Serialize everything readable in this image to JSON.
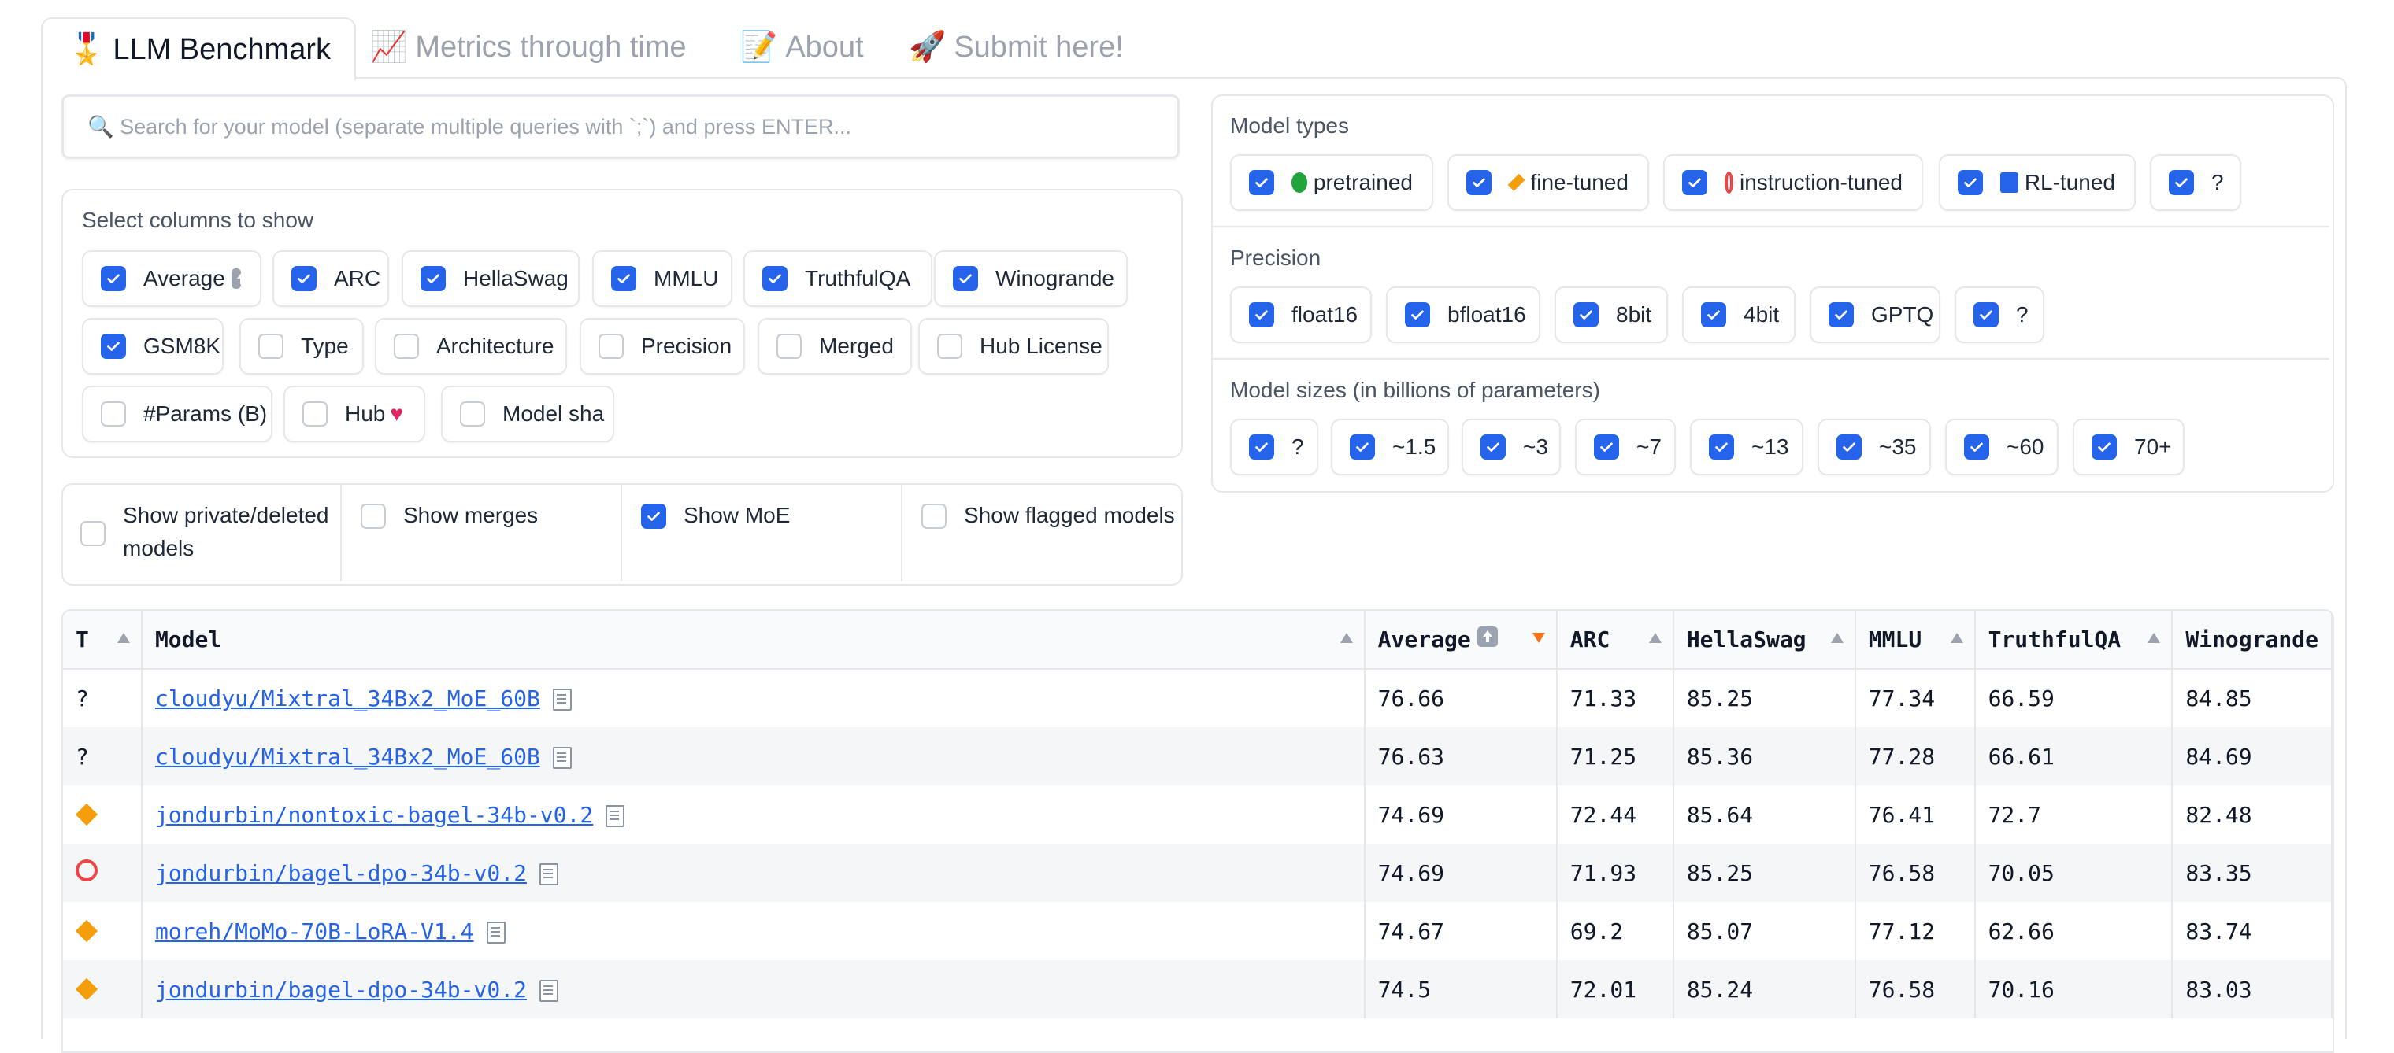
{
  "tabs": [
    {
      "icon": "🎖️",
      "label": "LLM Benchmark",
      "active": true
    },
    {
      "icon": "📈",
      "label": "Metrics through time"
    },
    {
      "icon": "📝",
      "label": "About"
    },
    {
      "icon": "🚀",
      "label": "Submit here!"
    }
  ],
  "search": {
    "placeholder": "🔍 Search for your model (separate multiple queries with `;`) and press ENTER..."
  },
  "columns": {
    "title": "Select columns to show",
    "items": [
      {
        "label": "Average",
        "checked": true
      },
      {
        "label": "ARC",
        "checked": true
      },
      {
        "label": "HellaSwag",
        "checked": true
      },
      {
        "label": "MMLU",
        "checked": true
      },
      {
        "label": "TruthfulQA",
        "checked": true
      },
      {
        "label": "Winogrande",
        "checked": true
      },
      {
        "label": "GSM8K",
        "checked": true
      },
      {
        "label": "Type",
        "checked": false
      },
      {
        "label": "Architecture",
        "checked": false
      },
      {
        "label": "Precision",
        "checked": false
      },
      {
        "label": "Merged",
        "checked": false
      },
      {
        "label": "Hub License",
        "checked": false
      },
      {
        "label": "#Params (B)",
        "checked": false
      },
      {
        "label": "Hub",
        "checked": false
      },
      {
        "label": "Model sha",
        "checked": false
      }
    ]
  },
  "options": [
    {
      "label": "Show private/deleted models",
      "line1": "Show private/deleted",
      "line2": "models",
      "checked": false
    },
    {
      "label": "Show merges",
      "checked": false
    },
    {
      "label": "Show MoE",
      "checked": true
    },
    {
      "label": "Show flagged models",
      "checked": false
    }
  ],
  "model_types": {
    "title": "Model types",
    "items": [
      {
        "icon": "green-circle",
        "label": "pretrained",
        "checked": true
      },
      {
        "icon": "orange-diamond",
        "label": "fine-tuned",
        "checked": true
      },
      {
        "icon": "red-ring",
        "label": "instruction-tuned",
        "checked": true
      },
      {
        "icon": "blue-square",
        "label": "RL-tuned",
        "checked": true
      },
      {
        "icon": "",
        "label": "?",
        "checked": true
      }
    ]
  },
  "precision": {
    "title": "Precision",
    "items": [
      {
        "label": "float16",
        "checked": true
      },
      {
        "label": "bfloat16",
        "checked": true
      },
      {
        "label": "8bit",
        "checked": true
      },
      {
        "label": "4bit",
        "checked": true
      },
      {
        "label": "GPTQ",
        "checked": true
      },
      {
        "label": "?",
        "checked": true
      }
    ]
  },
  "model_sizes": {
    "title": "Model sizes (in billions of parameters)",
    "items": [
      {
        "label": "?",
        "checked": true
      },
      {
        "label": "~1.5",
        "checked": true
      },
      {
        "label": "~3",
        "checked": true
      },
      {
        "label": "~7",
        "checked": true
      },
      {
        "label": "~13",
        "checked": true
      },
      {
        "label": "~35",
        "checked": true
      },
      {
        "label": "~60",
        "checked": true
      },
      {
        "label": "70+",
        "checked": true
      }
    ]
  },
  "table": {
    "headers": [
      "T",
      "Model",
      "Average",
      "ARC",
      "HellaSwag",
      "MMLU",
      "TruthfulQA",
      "Winogrande"
    ],
    "rows": [
      {
        "type": "?",
        "model": "cloudyu/Mixtral_34Bx2_MoE_60B",
        "average": "76.66",
        "arc": "71.33",
        "hellaswag": "85.25",
        "mmlu": "77.34",
        "truthfulqa": "66.59",
        "winogrande": "84.85"
      },
      {
        "type": "?",
        "model": "cloudyu/Mixtral_34Bx2_MoE_60B",
        "average": "76.63",
        "arc": "71.25",
        "hellaswag": "85.36",
        "mmlu": "77.28",
        "truthfulqa": "66.61",
        "winogrande": "84.69"
      },
      {
        "type": "diamond",
        "model": "jondurbin/nontoxic-bagel-34b-v0.2",
        "average": "74.69",
        "arc": "72.44",
        "hellaswag": "85.64",
        "mmlu": "76.41",
        "truthfulqa": "72.7",
        "winogrande": "82.48"
      },
      {
        "type": "ring",
        "model": "jondurbin/bagel-dpo-34b-v0.2",
        "average": "74.69",
        "arc": "71.93",
        "hellaswag": "85.25",
        "mmlu": "76.58",
        "truthfulqa": "70.05",
        "winogrande": "83.35"
      },
      {
        "type": "diamond",
        "model": "moreh/MoMo-70B-LoRA-V1.4",
        "average": "74.67",
        "arc": "69.2",
        "hellaswag": "85.07",
        "mmlu": "77.12",
        "truthfulqa": "62.66",
        "winogrande": "83.74"
      },
      {
        "type": "diamond",
        "model": "jondurbin/bagel-dpo-34b-v0.2",
        "average": "74.5",
        "arc": "72.01",
        "hellaswag": "85.24",
        "mmlu": "76.58",
        "truthfulqa": "70.16",
        "winogrande": "83.03"
      }
    ]
  }
}
